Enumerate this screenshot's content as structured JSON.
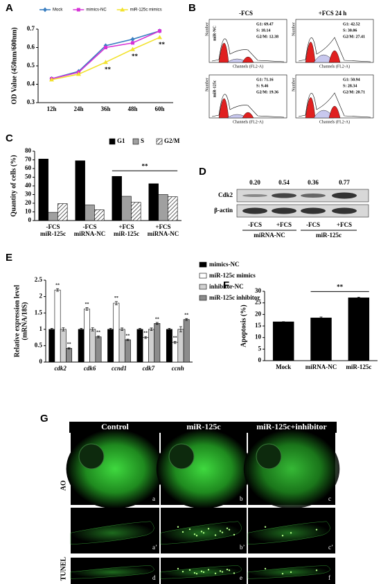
{
  "panel_labels": [
    "A",
    "B",
    "C",
    "D",
    "E",
    "F",
    "G"
  ],
  "chart_data": [
    {
      "type": "line",
      "ylabel": "OD Value (450nm/600nm)",
      "categories": [
        "12h",
        "24h",
        "36h",
        "48h",
        "60h"
      ],
      "series": [
        {
          "name": "Mock",
          "color": "#3a7fc1",
          "marker": "diamond",
          "values": [
            0.43,
            0.47,
            0.61,
            0.645,
            0.69
          ]
        },
        {
          "name": "mimics-NC",
          "color": "#d633d6",
          "marker": "square",
          "values": [
            0.43,
            0.465,
            0.6,
            0.625,
            0.69
          ]
        },
        {
          "name": "miR-125c mimics",
          "color": "#f2e22c",
          "marker": "triangle",
          "values": [
            0.425,
            0.455,
            0.52,
            0.59,
            0.655
          ]
        }
      ],
      "ylim": [
        0.3,
        0.7
      ],
      "yticks": [
        0.3,
        0.4,
        0.5,
        0.6,
        0.7
      ],
      "legend": "top",
      "annotations": [
        {
          "text": "**",
          "series": 2,
          "index": 2
        },
        {
          "text": "**",
          "series": 2,
          "index": 3
        },
        {
          "text": "**",
          "series": 2,
          "index": 4
        }
      ]
    },
    {
      "type": "bar",
      "ylabel": "Quantity of cells (%)",
      "categories": [
        [
          "-FCS",
          "miR-125c"
        ],
        [
          "-FCS",
          "miRNA-NC"
        ],
        [
          "+FCS",
          "miR-125c"
        ],
        [
          "+FCS",
          "miRNA-NC"
        ]
      ],
      "series": [
        {
          "name": "G1",
          "color": "#000000",
          "values": [
            71,
            69,
            51,
            42.5
          ]
        },
        {
          "name": "S",
          "color": "#a0a0a0",
          "values": [
            9.5,
            18,
            28,
            30
          ]
        },
        {
          "name": "G2/M",
          "color": "#ffffff",
          "hatch": true,
          "values": [
            19.5,
            12.5,
            21,
            27.5
          ]
        }
      ],
      "ylim": [
        0,
        80
      ],
      "yticks": [
        0,
        10,
        20,
        30,
        40,
        50,
        60,
        70,
        80
      ],
      "legend": "top-right",
      "annotations": [
        {
          "text": "**",
          "from": 2,
          "to": 3
        }
      ]
    },
    {
      "type": "bar",
      "ylabel": [
        "Relative expression level",
        "(mRNA/18S)"
      ],
      "italic": true,
      "categories": [
        "cdk2",
        "cdk6",
        "ccnd1",
        "cdk7",
        "ccnh"
      ],
      "series": [
        {
          "name": "mimics-NC",
          "color": "#000000",
          "values": [
            1,
            1,
            1,
            1,
            1
          ],
          "errors": [
            0.03,
            0.03,
            0.03,
            0.03,
            0.03
          ]
        },
        {
          "name": "miR-125c mimics",
          "color": "#ffffff",
          "values": [
            2.2,
            1.62,
            1.8,
            0.75,
            0.6
          ],
          "errors": [
            0.04,
            0.04,
            0.05,
            0.03,
            0.03
          ]
        },
        {
          "name": "inhibitor-NC",
          "color": "#d0d0d0",
          "values": [
            1,
            1,
            1,
            1,
            1
          ],
          "errors": [
            0.05,
            0.05,
            0.04,
            0.04,
            0.08
          ]
        },
        {
          "name": "miR-125c inhibitor",
          "color": "#8c8c8c",
          "values": [
            0.42,
            0.77,
            0.68,
            1.18,
            1.3
          ],
          "errors": [
            0.02,
            0.03,
            0.02,
            0.03,
            0.03
          ]
        }
      ],
      "ylim": [
        0,
        2.5
      ],
      "yticks": [
        0,
        0.5,
        1,
        1.5,
        2,
        2.5
      ],
      "legend": "right",
      "annotations": [
        {
          "text": "**",
          "series": 1,
          "index": 0
        },
        {
          "text": "**",
          "series": 3,
          "index": 0
        },
        {
          "text": "**",
          "series": 1,
          "index": 1
        },
        {
          "text": "**",
          "series": 3,
          "index": 1
        },
        {
          "text": "**",
          "series": 1,
          "index": 2
        },
        {
          "text": "**",
          "series": 3,
          "index": 2
        },
        {
          "text": "**",
          "series": 1,
          "index": 3
        },
        {
          "text": "**",
          "series": 3,
          "index": 3
        },
        {
          "text": "**",
          "series": 1,
          "index": 4
        },
        {
          "text": "**",
          "series": 3,
          "index": 4
        }
      ]
    },
    {
      "type": "bar",
      "ylabel": "Apoptosis (%)",
      "categories": [
        "Mock",
        "miRNA-NC",
        "miR-125c"
      ],
      "values": [
        16.8,
        18.5,
        27.2
      ],
      "errors": [
        0.1,
        0.4,
        0.3
      ],
      "color": "#000000",
      "ylim": [
        0,
        30
      ],
      "yticks": [
        0,
        5,
        10,
        15,
        20,
        25,
        30
      ],
      "annotations": [
        {
          "text": "**",
          "from": 1,
          "to": 2
        }
      ]
    }
  ],
  "flow": {
    "columns": [
      "-FCS",
      "+FCS 24 h"
    ],
    "rows": [
      "miR-NC",
      "miR-125c"
    ],
    "stats": [
      [
        [
          "G1: 69.47",
          "S: 18.14",
          "G2/M: 12.38"
        ],
        [
          "G1: 42.52",
          "S: 30.06",
          "G2/M: 27.41"
        ]
      ],
      [
        [
          "G1: 71.16",
          "S: 9.46",
          "G2/M: 19.36"
        ],
        [
          "G1: 50.94",
          "S: 28.34",
          "G2/M: 20.71"
        ]
      ]
    ],
    "xlabel": "Channels (FL2-A)",
    "ylabel": "Number"
  },
  "blot": {
    "ratios": [
      "0.20",
      "0.54",
      "0.36",
      "0.77"
    ],
    "rows": [
      "Cdk2",
      "β-actin"
    ],
    "lanes": [
      "-FCS",
      "+FCS",
      "-FCS",
      "+FCS"
    ],
    "groups": [
      "miRNA-NC",
      "miR-125c"
    ]
  },
  "imaging": {
    "columns": [
      "Control",
      "miR-125c",
      "miR-125c+inhibitor"
    ],
    "rows": [
      "AO",
      "TUNEL"
    ],
    "panels": [
      [
        "a",
        "b",
        "c"
      ],
      [
        "a’",
        "b’",
        "c’"
      ],
      [
        "d",
        "e",
        "f"
      ]
    ]
  }
}
